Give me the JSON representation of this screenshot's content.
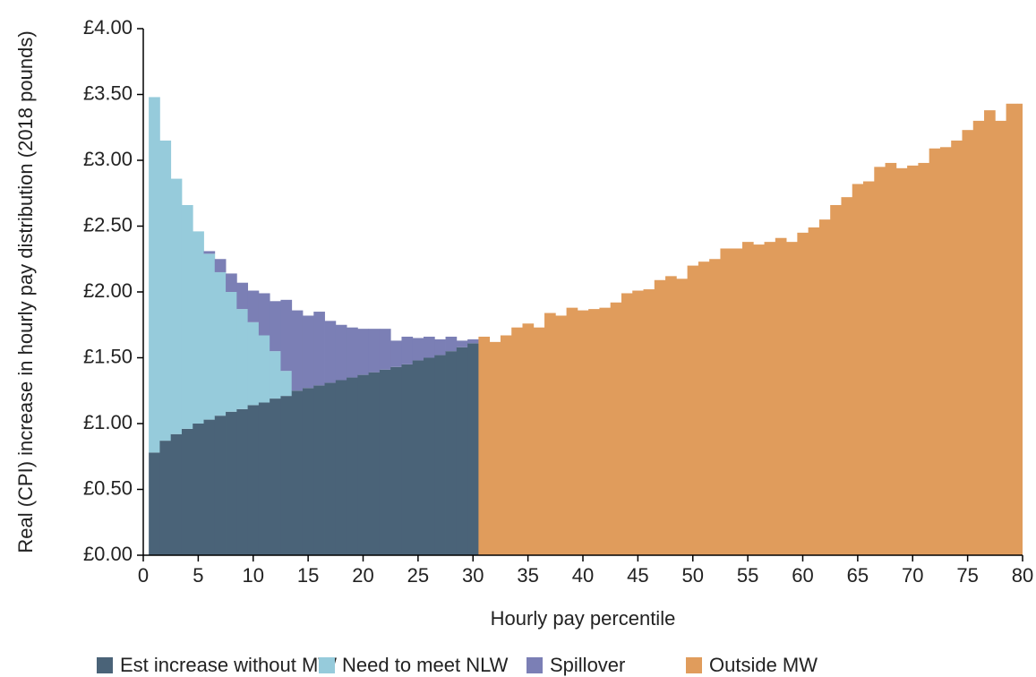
{
  "chart_data": {
    "type": "bar",
    "stacked": true,
    "x_label": "Hourly pay percentile",
    "y_label": "Real (CPI) increase in hourly pay distribution (2018 pounds)",
    "x": [
      1,
      2,
      3,
      4,
      5,
      6,
      7,
      8,
      9,
      10,
      11,
      12,
      13,
      14,
      15,
      16,
      17,
      18,
      19,
      20,
      21,
      22,
      23,
      24,
      25,
      26,
      27,
      28,
      29,
      30,
      31,
      32,
      33,
      34,
      35,
      36,
      37,
      38,
      39,
      40,
      41,
      42,
      43,
      44,
      45,
      46,
      47,
      48,
      49,
      50,
      51,
      52,
      53,
      54,
      55,
      56,
      57,
      58,
      59,
      60,
      61,
      62,
      63,
      64,
      65,
      66,
      67,
      68,
      69,
      70,
      71,
      72,
      73,
      74,
      75,
      76,
      77,
      78,
      79,
      80
    ],
    "series": [
      {
        "name": "Est increase without MW",
        "color": "#4a6378",
        "values": [
          0.78,
          0.87,
          0.92,
          0.96,
          1.0,
          1.03,
          1.06,
          1.09,
          1.11,
          1.14,
          1.16,
          1.19,
          1.21,
          1.25,
          1.27,
          1.29,
          1.31,
          1.33,
          1.35,
          1.37,
          1.39,
          1.41,
          1.43,
          1.45,
          1.48,
          1.5,
          1.52,
          1.55,
          1.58,
          1.61,
          null,
          null,
          null,
          null,
          null,
          null,
          null,
          null,
          null,
          null,
          null,
          null,
          null,
          null,
          null,
          null,
          null,
          null,
          null,
          null,
          null,
          null,
          null,
          null,
          null,
          null,
          null,
          null,
          null,
          null,
          null,
          null,
          null,
          null,
          null,
          null,
          null,
          null,
          null,
          null,
          null,
          null,
          null,
          null,
          null,
          null,
          null,
          null,
          null,
          null
        ]
      },
      {
        "name": "Need to meet NLW",
        "color": "#96cbdb",
        "values": [
          2.7,
          2.28,
          1.94,
          1.7,
          1.46,
          1.26,
          1.09,
          0.91,
          0.76,
          0.63,
          0.51,
          0.36,
          0.19,
          null,
          null,
          null,
          null,
          null,
          null,
          null,
          null,
          null,
          null,
          null,
          null,
          null,
          null,
          null,
          null,
          null,
          null,
          null,
          null,
          null,
          null,
          null,
          null,
          null,
          null,
          null,
          null,
          null,
          null,
          null,
          null,
          null,
          null,
          null,
          null,
          null,
          null,
          null,
          null,
          null,
          null,
          null,
          null,
          null,
          null,
          null,
          null,
          null,
          null,
          null,
          null,
          null,
          null,
          null,
          null,
          null,
          null,
          null,
          null,
          null,
          null,
          null,
          null,
          null,
          null,
          null
        ]
      },
      {
        "name": "Spillover",
        "color": "#7b7fb5",
        "values": [
          null,
          null,
          null,
          null,
          null,
          0.02,
          0.1,
          0.14,
          0.2,
          0.24,
          0.32,
          0.38,
          0.54,
          0.61,
          0.55,
          0.56,
          0.47,
          0.42,
          0.38,
          0.35,
          0.33,
          0.31,
          0.2,
          0.21,
          0.17,
          0.16,
          0.12,
          0.11,
          0.05,
          0.03,
          null,
          null,
          null,
          null,
          null,
          null,
          null,
          null,
          null,
          null,
          null,
          null,
          null,
          null,
          null,
          null,
          null,
          null,
          null,
          null,
          null,
          null,
          null,
          null,
          null,
          null,
          null,
          null,
          null,
          null,
          null,
          null,
          null,
          null,
          null,
          null,
          null,
          null,
          null,
          null,
          null,
          null,
          null,
          null,
          null,
          null,
          null,
          null,
          null,
          null
        ]
      },
      {
        "name": "Outside MW",
        "color": "#e09c5c",
        "values": [
          null,
          null,
          null,
          null,
          null,
          null,
          null,
          null,
          null,
          null,
          null,
          null,
          null,
          null,
          null,
          null,
          null,
          null,
          null,
          null,
          null,
          null,
          null,
          null,
          null,
          null,
          null,
          null,
          null,
          null,
          1.66,
          1.62,
          1.67,
          1.73,
          1.76,
          1.73,
          1.84,
          1.82,
          1.88,
          1.86,
          1.87,
          1.88,
          1.92,
          1.99,
          2.01,
          2.02,
          2.09,
          2.12,
          2.1,
          2.2,
          2.23,
          2.25,
          2.33,
          2.33,
          2.38,
          2.36,
          2.38,
          2.41,
          2.38,
          2.45,
          2.49,
          2.55,
          2.66,
          2.72,
          2.82,
          2.84,
          2.95,
          2.98,
          2.94,
          2.96,
          2.98,
          3.09,
          3.1,
          3.15,
          3.23,
          3.3,
          3.38,
          3.3,
          3.43,
          3.43
        ]
      }
    ],
    "xlim": [
      0,
      80
    ],
    "xticks": [
      0,
      5,
      10,
      15,
      20,
      25,
      30,
      35,
      40,
      45,
      50,
      55,
      60,
      65,
      70,
      75,
      80
    ],
    "ylim": [
      0,
      4
    ],
    "yticks": [
      {
        "value": 0,
        "label": "£0.00"
      },
      {
        "value": 0.5,
        "label": "£0.50"
      },
      {
        "value": 1,
        "label": "£1.00"
      },
      {
        "value": 1.5,
        "label": "£1.50"
      },
      {
        "value": 2,
        "label": "£2.00"
      },
      {
        "value": 2.5,
        "label": "£2.50"
      },
      {
        "value": 3,
        "label": "£3.00"
      },
      {
        "value": 3.5,
        "label": "£3.50"
      },
      {
        "value": 4,
        "label": "£4.00"
      }
    ],
    "grid": false,
    "legend": "bottom"
  }
}
